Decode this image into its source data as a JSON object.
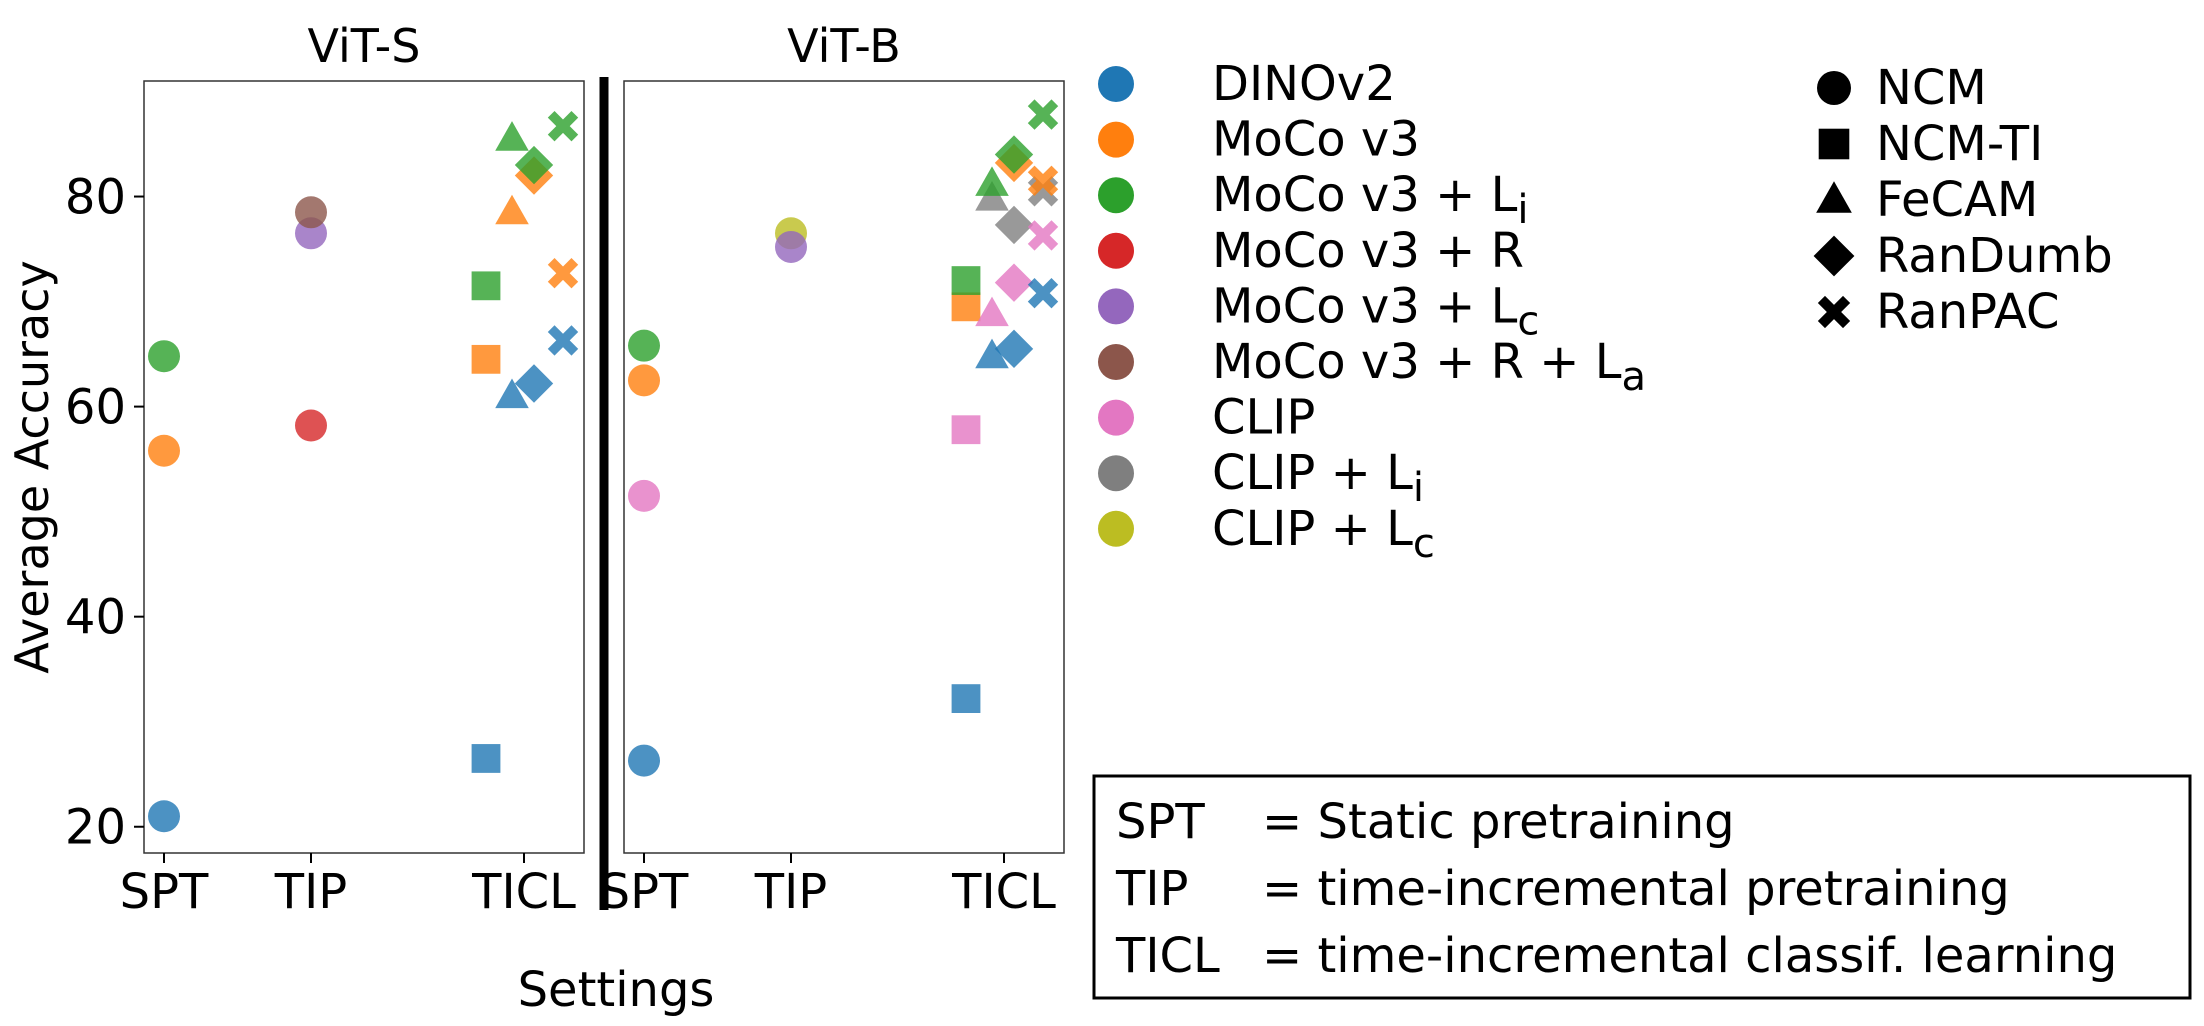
{
  "chart_data": {
    "type": "scatter",
    "ylabel": "Average Accuracy",
    "xlabel": "Settings",
    "ylim": [
      17.5,
      91
    ],
    "yticks": [
      20,
      40,
      60,
      80
    ],
    "categories": [
      "SPT",
      "TIP",
      "TICL"
    ],
    "models": [
      {
        "key": "dino",
        "name": "DINOv2",
        "label_base": "DINOv2",
        "label_sub": "",
        "color": "#1f77b4"
      },
      {
        "key": "moco",
        "name": "MoCo v3",
        "label_base": "MoCo v3",
        "label_sub": "",
        "color": "#ff7f0e"
      },
      {
        "key": "moco_li",
        "name": "MoCo v3 + Li",
        "label_base": "MoCo v3 + L",
        "label_sub": "i",
        "color": "#2ca02c"
      },
      {
        "key": "moco_r",
        "name": "MoCo v3 + R",
        "label_base": "MoCo v3 + R",
        "label_sub": "",
        "color": "#d62728"
      },
      {
        "key": "moco_lc",
        "name": "MoCo v3 + Lc",
        "label_base": "MoCo v3 + L",
        "label_sub": "c",
        "color": "#9467bd"
      },
      {
        "key": "moco_r_la",
        "name": "MoCo v3 + R + La",
        "label_base": "MoCo v3 + R + L",
        "label_sub": "a",
        "color": "#8c564b"
      },
      {
        "key": "clip",
        "name": "CLIP",
        "label_base": "CLIP",
        "label_sub": "",
        "color": "#e377c2"
      },
      {
        "key": "clip_li",
        "name": "CLIP + Li",
        "label_base": "CLIP + L",
        "label_sub": "i",
        "color": "#7f7f7f"
      },
      {
        "key": "clip_lc",
        "name": "CLIP + Lc",
        "label_base": "CLIP + L",
        "label_sub": "c",
        "color": "#bcbd22"
      }
    ],
    "methods": [
      {
        "key": "ncm",
        "name": "NCM",
        "marker": "circle"
      },
      {
        "key": "ncm_ti",
        "name": "NCM-TI",
        "marker": "square"
      },
      {
        "key": "fecam",
        "name": "FeCAM",
        "marker": "triangle"
      },
      {
        "key": "randumb",
        "name": "RanDumb",
        "marker": "diamond"
      },
      {
        "key": "ranpac",
        "name": "RanPAC",
        "marker": "x"
      }
    ],
    "panels": [
      {
        "title": "ViT-S",
        "points": [
          {
            "setting": "SPT",
            "model": "dino",
            "method": "ncm",
            "y": 21.0
          },
          {
            "setting": "SPT",
            "model": "moco",
            "method": "ncm",
            "y": 55.8
          },
          {
            "setting": "SPT",
            "model": "moco_li",
            "method": "ncm",
            "y": 64.8
          },
          {
            "setting": "TIP",
            "model": "moco_r",
            "method": "ncm",
            "y": 58.2
          },
          {
            "setting": "TIP",
            "model": "moco_lc",
            "method": "ncm",
            "y": 76.5
          },
          {
            "setting": "TIP",
            "model": "moco_r_la",
            "method": "ncm",
            "y": 78.5
          },
          {
            "setting": "TICL",
            "model": "dino",
            "method": "ncm_ti",
            "y": 26.5
          },
          {
            "setting": "TICL",
            "model": "moco",
            "method": "ncm_ti",
            "y": 64.5
          },
          {
            "setting": "TICL",
            "model": "moco_li",
            "method": "ncm_ti",
            "y": 71.5
          },
          {
            "setting": "TICL",
            "model": "dino",
            "method": "fecam",
            "y": 61.0
          },
          {
            "setting": "TICL",
            "model": "moco",
            "method": "fecam",
            "y": 78.5
          },
          {
            "setting": "TICL",
            "model": "moco_li",
            "method": "fecam",
            "y": 85.5
          },
          {
            "setting": "TICL",
            "model": "dino",
            "method": "randumb",
            "y": 62.2
          },
          {
            "setting": "TICL",
            "model": "moco",
            "method": "randumb",
            "y": 82.0
          },
          {
            "setting": "TICL",
            "model": "moco_li",
            "method": "randumb",
            "y": 83.0
          },
          {
            "setting": "TICL",
            "model": "dino",
            "method": "ranpac",
            "y": 66.3
          },
          {
            "setting": "TICL",
            "model": "moco",
            "method": "ranpac",
            "y": 72.7
          },
          {
            "setting": "TICL",
            "model": "moco_li",
            "method": "ranpac",
            "y": 86.7
          }
        ]
      },
      {
        "title": "ViT-B",
        "points": [
          {
            "setting": "SPT",
            "model": "dino",
            "method": "ncm",
            "y": 26.3
          },
          {
            "setting": "SPT",
            "model": "clip",
            "method": "ncm",
            "y": 51.5
          },
          {
            "setting": "SPT",
            "model": "moco",
            "method": "ncm",
            "y": 62.5
          },
          {
            "setting": "SPT",
            "model": "moco_li",
            "method": "ncm",
            "y": 65.8
          },
          {
            "setting": "TIP",
            "model": "clip_lc",
            "method": "ncm",
            "y": 76.5
          },
          {
            "setting": "TIP",
            "model": "moco_lc",
            "method": "ncm",
            "y": 75.2
          },
          {
            "setting": "TICL",
            "model": "dino",
            "method": "ncm_ti",
            "y": 32.2
          },
          {
            "setting": "TICL",
            "model": "clip",
            "method": "ncm_ti",
            "y": 57.8
          },
          {
            "setting": "TICL",
            "model": "moco",
            "method": "ncm_ti",
            "y": 69.5
          },
          {
            "setting": "TICL",
            "model": "moco_li",
            "method": "ncm_ti",
            "y": 72.0
          },
          {
            "setting": "TICL",
            "model": "dino",
            "method": "fecam",
            "y": 64.8
          },
          {
            "setting": "TICL",
            "model": "clip",
            "method": "fecam",
            "y": 68.8
          },
          {
            "setting": "TICL",
            "model": "clip_li",
            "method": "fecam",
            "y": 79.8
          },
          {
            "setting": "TICL",
            "model": "moco_li",
            "method": "fecam",
            "y": 81.2
          },
          {
            "setting": "TICL",
            "model": "dino",
            "method": "randumb",
            "y": 65.5
          },
          {
            "setting": "TICL",
            "model": "clip",
            "method": "randumb",
            "y": 71.8
          },
          {
            "setting": "TICL",
            "model": "clip_li",
            "method": "randumb",
            "y": 77.3
          },
          {
            "setting": "TICL",
            "model": "moco",
            "method": "randumb",
            "y": 83.2
          },
          {
            "setting": "TICL",
            "model": "moco_li",
            "method": "randumb",
            "y": 84.0
          },
          {
            "setting": "TICL",
            "model": "dino",
            "method": "ranpac",
            "y": 70.8
          },
          {
            "setting": "TICL",
            "model": "clip",
            "method": "ranpac",
            "y": 76.3
          },
          {
            "setting": "TICL",
            "model": "clip_li",
            "method": "ranpac",
            "y": 80.5
          },
          {
            "setting": "TICL",
            "model": "moco",
            "method": "ranpac",
            "y": 81.5
          },
          {
            "setting": "TICL",
            "model": "moco_li",
            "method": "ranpac",
            "y": 87.8
          }
        ]
      }
    ],
    "definitions": [
      {
        "abbr": "SPT",
        "text": "= Static pretraining"
      },
      {
        "abbr": "TIP",
        "text": "= time-incremental pretraining"
      },
      {
        "abbr": "TICL",
        "text": "= time-incremental classif. learning"
      }
    ]
  }
}
